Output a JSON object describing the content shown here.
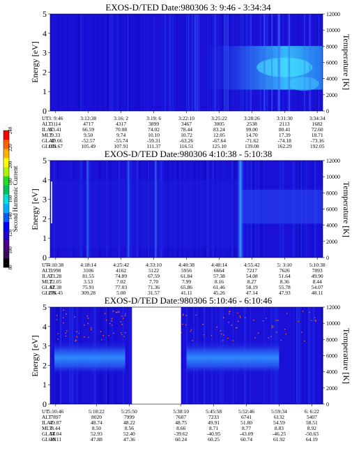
{
  "colors": {
    "background": "#0000cc",
    "base": "#1a10d8",
    "bright": "#3ad8ff",
    "white_gap": "#ffffff",
    "dot": "#ff6a1a"
  },
  "colorbar": {
    "label": "Second Harmonic Current",
    "ticks": [
      "80",
      "100",
      "120",
      "140",
      "160",
      "180",
      "200",
      "220",
      "240"
    ],
    "colors": [
      "#000000",
      "#3a0a5a",
      "#4b0082",
      "#2200cc",
      "#0000ff",
      "#0060ff",
      "#00b0ff",
      "#00e0e0",
      "#00c060",
      "#20e020",
      "#b0f000",
      "#ffff00",
      "#ffb000",
      "#ff6000",
      "#ff0000"
    ]
  },
  "row_labels": [
    "UT",
    "ALT",
    "ILAT",
    "MLT",
    "GLAT",
    "GLON"
  ],
  "chart_data": [
    {
      "type": "heatmap",
      "title": "EXOS-D/TED   Date:980306   3: 9:46 - 3:34:34",
      "ylabel": "Energy [eV]",
      "y2label": "Temperature [K]",
      "ylim": [
        0,
        5
      ],
      "y2lim": [
        0,
        12000
      ],
      "yticks": [
        "0",
        "1",
        "2",
        "3",
        "4",
        "5"
      ],
      "y2ticks": [
        "0",
        "2000",
        "4000",
        "6000",
        "8000",
        "10000",
        "12000"
      ],
      "columns": [
        [
          "3: 9:46",
          "3114",
          "63.41",
          "9.33",
          "-49.66",
          "103.67"
        ],
        [
          "3:12:38",
          "4717",
          "66.59",
          "9.50",
          "-52.57",
          "105.49"
        ],
        [
          "3:16: 2",
          "4317",
          "70.08",
          "9.74",
          "-55.74",
          "107.91"
        ],
        [
          "3:19: 6",
          "3899",
          "74.02",
          "10.10",
          "-59.31",
          "111.37"
        ],
        [
          "3:22:10",
          "3467",
          "78.44",
          "10.72",
          "-63.26",
          "116.51"
        ],
        [
          "3:25:22",
          "3005",
          "83.24",
          "12.05",
          "-67.64",
          "125.10"
        ],
        [
          "3:28:26",
          "2538",
          "99.00",
          "14.70",
          "-71.62",
          "139.08"
        ],
        [
          "3:31:30",
          "2113",
          "80.41",
          "17.39",
          "-74.18",
          "162.29"
        ],
        [
          "3:34:34",
          "1682",
          "72.60",
          "18.71",
          "-73.16",
          "192.05"
        ]
      ],
      "gaps": [],
      "dots": false
    },
    {
      "type": "heatmap",
      "title": "EXOS-D/TED   Date:980306   4:10:38 - 5:10:38",
      "ylabel": "Energy [eV]",
      "y2label": "Temperature [K]",
      "ylim": [
        0,
        5
      ],
      "y2lim": [
        0,
        12000
      ],
      "yticks": [
        "0",
        "1",
        "2",
        "3",
        "4",
        "5"
      ],
      "y2ticks": [
        "0",
        "2000",
        "4000",
        "6000",
        "8000",
        "10000",
        "12000"
      ],
      "columns": [
        [
          "4:10:38",
          "1998",
          "73.28",
          "22.05",
          "62.38",
          "276.45"
        ],
        [
          "4:18:14",
          "3106",
          "81.55",
          "3.53",
          "75.91",
          "309.28"
        ],
        [
          "4:25:42",
          "4162",
          "74.89",
          "7.02",
          "77.03",
          "5.00"
        ],
        [
          "4:33:10",
          "5122",
          "67.59",
          "7.70",
          "71.36",
          "31.57"
        ],
        [
          "4:40:38",
          "5956",
          "61.84",
          "7.99",
          "65.86",
          "41.11"
        ],
        [
          "4:48:14",
          "6664",
          "57.38",
          "8.16",
          "61.46",
          "45.26"
        ],
        [
          "4:55:42",
          "7217",
          "54.08",
          "8.27",
          "58.19",
          "47.14"
        ],
        [
          "5: 3:10",
          "7626",
          "51.64",
          "8.36",
          "55.78",
          "47.93"
        ],
        [
          "5:10:38",
          "7893",
          "49.90",
          "8.44",
          "54.07",
          "48.11"
        ]
      ],
      "gaps": [],
      "dots": false
    },
    {
      "type": "heatmap",
      "title": "EXOS-D/TED   Date:980306   5:10:46 - 6:10:46",
      "ylabel": "Energy [eV]",
      "y2label": "Temperature [K]",
      "ylim": [
        0,
        5
      ],
      "y2lim": [
        0,
        12000
      ],
      "yticks": [
        "0",
        "1",
        "2",
        "3",
        "4",
        "5"
      ],
      "y2ticks": [
        "0",
        "2000",
        "4000",
        "6000",
        "8000",
        "10000",
        "12000"
      ],
      "columns": [
        [
          "5:10:46",
          "7897",
          "49.87",
          "8.44",
          "54.04",
          "48.11"
        ],
        [
          "5:18:22",
          "8020",
          "48.74",
          "8.50",
          "52.93",
          "47.88"
        ],
        [
          "5:25:50",
          "7999",
          "48.22",
          "8.56",
          "52.40",
          "47.36"
        ],
        [
          "5:38:10",
          "7607",
          "48.75",
          "8.66",
          "-39.62",
          "60.24"
        ],
        [
          "5:45:58",
          "7233",
          "49.91",
          "8.71",
          "-40.95",
          "60.25"
        ],
        [
          "5:52:46",
          "6741",
          "51.80",
          "8.77",
          "-43.09",
          "60.74"
        ],
        [
          "5:59:34",
          "6132",
          "54.59",
          "8.83",
          "-46.25",
          "61.92"
        ],
        [
          "6: 6:22",
          "5407",
          "58.51",
          "8.92",
          "-50.63",
          "64.19"
        ]
      ],
      "gaps": [
        [
          0.3,
          0.48
        ]
      ],
      "dots": true
    }
  ]
}
